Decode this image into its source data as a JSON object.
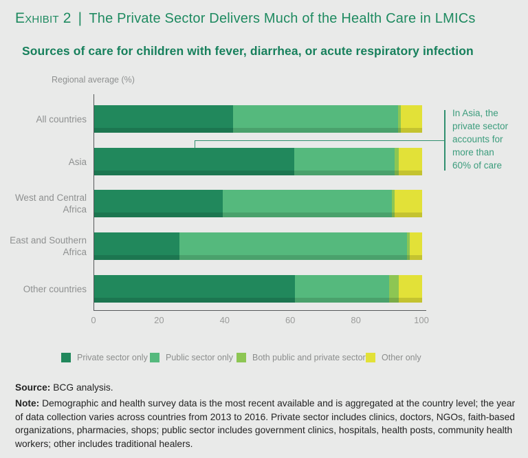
{
  "header": {
    "exhibit_label": "Exhibit 2",
    "divider": "|",
    "title": "The Private Sector Delivers Much of the Health Care in LMICs"
  },
  "subtitle": "Sources of care for children with fever, diarrhea, or acute respiratory infection",
  "chart_data": {
    "type": "bar",
    "orientation": "horizontal-stacked",
    "axis_title": "Regional average (%)",
    "categories": [
      "All countries",
      "Asia",
      "West and Central Africa",
      "East and Southern Africa",
      "Other countries"
    ],
    "series": [
      {
        "name": "Private sector only",
        "color": "#21885c",
        "values": [
          42.3,
          61.0,
          39.2,
          26.0,
          61.2
        ]
      },
      {
        "name": "Public sector only",
        "color": "#55b97d",
        "values": [
          50.3,
          30.6,
          51.6,
          69.4,
          28.7
        ]
      },
      {
        "name": "Both public and private sectors",
        "color": "#8dc653",
        "values": [
          1.0,
          1.3,
          0.8,
          0.8,
          2.9
        ]
      },
      {
        "name": "Other only",
        "color": "#e2e138",
        "values": [
          6.4,
          7.1,
          8.4,
          3.8,
          7.2
        ]
      }
    ],
    "xlim": [
      0,
      100
    ],
    "x_ticks": [
      "0",
      "20",
      "40",
      "60",
      "80",
      "100"
    ],
    "grid": false,
    "legend_position": "bottom",
    "annotation": {
      "text": "In Asia, the private sector accounts for more than 60% of care",
      "lines": [
        "In Asia, the",
        "private sector",
        "accounts for",
        "more than",
        "60% of care"
      ],
      "color": "#3b9c7c"
    }
  },
  "footer": {
    "source_label": "Source:",
    "source_text": " BCG analysis.",
    "note_label": "Note:",
    "note_text": " Demographic and health survey data is the most recent available and is aggregated at the country level; the year of data collection varies across countries from 2013 to 2016. Private sector includes clinics, doctors, NGOs, faith-based organizations, pharmacies, shops; public sector includes government clinics, hospitals, health posts, community health workers; other includes traditional healers."
  },
  "colors": {
    "background": "#e9eae9",
    "header_green": "#1e8a60",
    "subtitle_green": "#17805c",
    "annotation_green": "#3b9c7c",
    "axis_gray": "#55585a",
    "label_gray": "#8e9090"
  }
}
